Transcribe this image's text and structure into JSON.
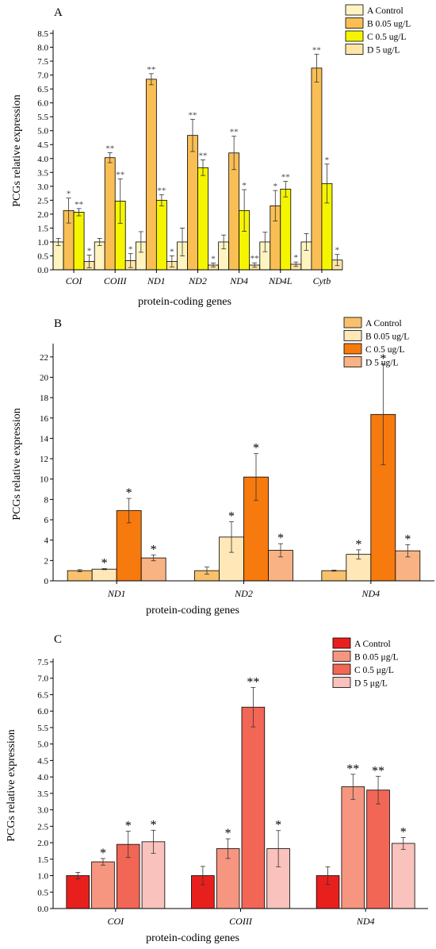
{
  "chart_data": [
    {
      "type": "bar",
      "panel": "A",
      "xlabel": "protein-coding genes",
      "ylabel": "PCGs relative expression",
      "ylim": [
        0,
        8.5
      ],
      "yticks": [
        "0.0",
        "0.5",
        "1.0",
        "1.5",
        "2.0",
        "2.5",
        "3.0",
        "3.5",
        "4.0",
        "4.5",
        "5.0",
        "5.5",
        "6.0",
        "6.5",
        "7.0",
        "7.5",
        "8.0",
        "8.5"
      ],
      "categories": [
        "COI",
        "COIII",
        "ND1",
        "ND2",
        "ND4",
        "ND4L",
        "Cytb"
      ],
      "legend_position": "top-right",
      "series": [
        {
          "name": "A Control",
          "color": "#FFF4C0",
          "values": [
            1.0,
            1.0,
            1.0,
            1.0,
            1.0,
            1.0,
            1.0
          ],
          "errors": [
            0.13,
            0.13,
            0.37,
            0.5,
            0.25,
            0.35,
            0.3
          ],
          "labels": [
            "",
            "",
            "",
            "",
            "",
            "",
            ""
          ]
        },
        {
          "name": "B 0.05 ug/L",
          "color": "#F9BF54",
          "values": [
            2.13,
            4.03,
            6.85,
            4.83,
            4.2,
            2.3,
            7.25
          ],
          "errors": [
            0.45,
            0.18,
            0.2,
            0.58,
            0.6,
            0.55,
            0.5
          ],
          "labels": [
            "*",
            "**",
            "**",
            "**",
            "**",
            "*",
            "**"
          ]
        },
        {
          "name": "C 0.5 ug/L",
          "color": "#F5F500",
          "values": [
            2.07,
            2.47,
            2.5,
            3.67,
            2.13,
            2.9,
            3.1
          ],
          "errors": [
            0.13,
            0.8,
            0.2,
            0.28,
            0.75,
            0.28,
            0.7
          ],
          "labels": [
            "**",
            "**",
            "**",
            "**",
            "*",
            "**",
            "*"
          ]
        },
        {
          "name": "D 5 ug/L",
          "color": "#FFE6A8",
          "values": [
            0.3,
            0.33,
            0.3,
            0.17,
            0.17,
            0.2,
            0.35
          ],
          "errors": [
            0.23,
            0.25,
            0.2,
            0.07,
            0.08,
            0.08,
            0.2
          ],
          "labels": [
            "*",
            "*",
            "*",
            "*",
            "**",
            "*",
            "*"
          ]
        }
      ]
    },
    {
      "type": "bar",
      "panel": "B",
      "xlabel": "protein-coding genes",
      "ylabel": "PCGs relative expression",
      "ylim": [
        0,
        23
      ],
      "yticks": [
        "0",
        "2",
        "4",
        "6",
        "8",
        "10",
        "12",
        "14",
        "16",
        "18",
        "20",
        "22"
      ],
      "categories": [
        "ND1",
        "ND2",
        "ND4"
      ],
      "legend_position": "top-right",
      "series": [
        {
          "name": "A Control",
          "color": "#F9C06D",
          "values": [
            1.0,
            1.0,
            1.0
          ],
          "errors": [
            0.1,
            0.35,
            0.05
          ],
          "labels": [
            "",
            "",
            ""
          ]
        },
        {
          "name": "B 0.05 ug/L",
          "color": "#FFE7B8",
          "values": [
            1.15,
            4.3,
            2.6
          ],
          "errors": [
            0.05,
            1.5,
            0.45
          ],
          "labels": [
            "*",
            "*",
            "*"
          ]
        },
        {
          "name": "C 0.5 ug/L",
          "color": "#F77A0E",
          "values": [
            6.9,
            10.2,
            16.35
          ],
          "errors": [
            1.2,
            2.3,
            4.95
          ],
          "labels": [
            "*",
            "*",
            "*"
          ]
        },
        {
          "name": "D 5 ug/L",
          "color": "#F9B283",
          "values": [
            2.25,
            3.0,
            2.95
          ],
          "errors": [
            0.28,
            0.65,
            0.6
          ],
          "labels": [
            "*",
            "*",
            "*"
          ]
        }
      ]
    },
    {
      "type": "bar",
      "panel": "C",
      "xlabel": "protein-coding genes",
      "ylabel": "PCGs relative expression",
      "ylim": [
        0,
        7.5
      ],
      "yticks": [
        "0.0",
        "0.5",
        "1.0",
        "1.5",
        "2.0",
        "2.5",
        "3.0",
        "3.5",
        "4.0",
        "4.5",
        "5.0",
        "5.5",
        "6.0",
        "6.5",
        "7.0",
        "7.5"
      ],
      "categories": [
        "COI",
        "COIII",
        "ND4"
      ],
      "legend_position": "top-right",
      "series": [
        {
          "name": "A Control",
          "color": "#E8201D",
          "values": [
            1.0,
            1.0,
            1.0
          ],
          "errors": [
            0.1,
            0.28,
            0.27
          ],
          "labels": [
            "",
            "",
            ""
          ]
        },
        {
          "name": "B 0.05 μg/L",
          "color": "#F69680",
          "values": [
            1.42,
            1.82,
            3.7
          ],
          "errors": [
            0.1,
            0.3,
            0.38
          ],
          "labels": [
            "*",
            "*",
            "**"
          ]
        },
        {
          "name": "C 0.5 μg/L",
          "color": "#F26656",
          "values": [
            1.95,
            6.12,
            3.6
          ],
          "errors": [
            0.4,
            0.6,
            0.42
          ],
          "labels": [
            "*",
            "**",
            "**"
          ]
        },
        {
          "name": "D 5 μg/L",
          "color": "#FAC2BC",
          "values": [
            2.03,
            1.82,
            1.98
          ],
          "errors": [
            0.35,
            0.55,
            0.18
          ],
          "labels": [
            "*",
            "*",
            "*"
          ]
        }
      ]
    }
  ]
}
